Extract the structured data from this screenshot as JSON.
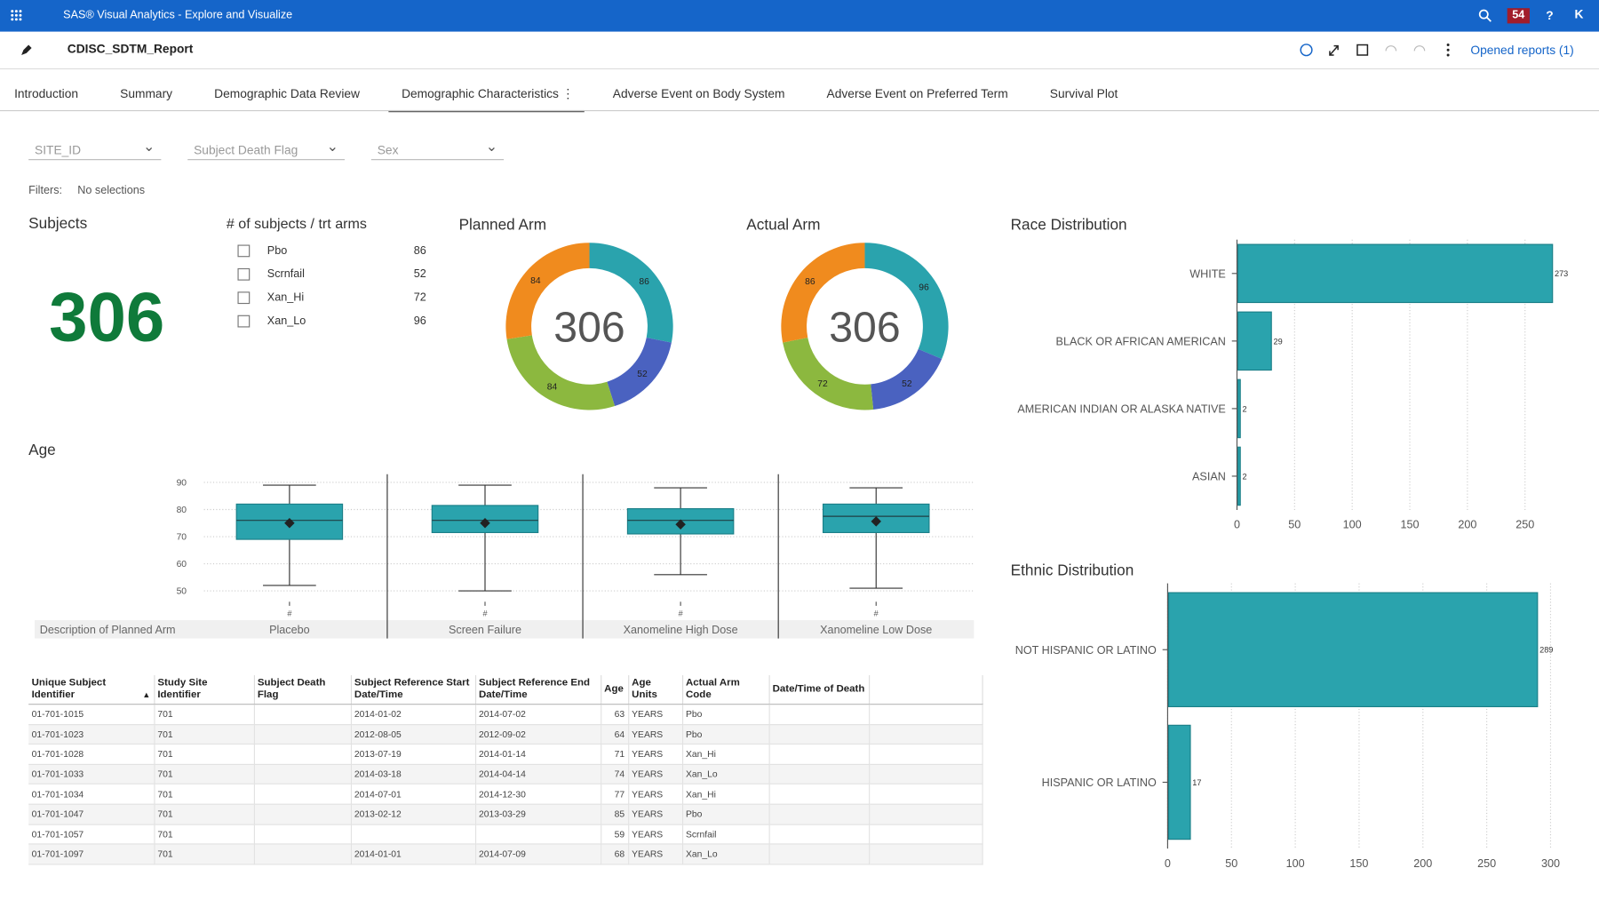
{
  "header": {
    "app_title": "SAS® Visual Analytics - Explore and Visualize",
    "badge": "54",
    "help": "?",
    "user": "K",
    "report_title": "CDISC_SDTM_Report",
    "opened_reports": "Opened reports (1)"
  },
  "tabs": {
    "items": [
      "Introduction",
      "Summary",
      "Demographic Data Review",
      "Demographic Characteristics",
      "Adverse Event on Body System",
      "Adverse Event on Preferred Term",
      "Survival Plot"
    ],
    "active": 3
  },
  "filters": {
    "dropdowns": [
      "SITE_ID",
      "Subject Death Flag",
      "Sex"
    ],
    "label": "Filters:",
    "value": "No selections"
  },
  "subjects": {
    "title": "Subjects",
    "value": 306
  },
  "arm_counts": {
    "title": "# of subjects / trt arms",
    "items": [
      {
        "name": "Pbo",
        "value": 86
      },
      {
        "name": "Scrnfail",
        "value": 52
      },
      {
        "name": "Xan_Hi",
        "value": 72
      },
      {
        "name": "Xan_Lo",
        "value": 96
      }
    ]
  },
  "chart_data": [
    {
      "type": "donut",
      "title": "Planned Arm",
      "center_label": 306,
      "values": [
        86,
        52,
        84,
        84
      ],
      "colors": [
        "#2aa3ad",
        "#4a62c0",
        "#8cb83f",
        "#f08b1e"
      ]
    },
    {
      "type": "donut",
      "title": "Actual Arm",
      "center_label": 306,
      "values": [
        96,
        52,
        72,
        86
      ],
      "colors": [
        "#2aa3ad",
        "#4a62c0",
        "#8cb83f",
        "#f08b1e"
      ]
    },
    {
      "type": "boxplot",
      "title": "Age",
      "x_label": "Description of Planned Arm",
      "tick_symbol": "#",
      "categories": [
        "Placebo",
        "Screen Failure",
        "Xanomeline High Dose",
        "Xanomeline Low Dose"
      ],
      "ylim": [
        46,
        93
      ],
      "yticks": [
        50,
        60,
        70,
        80,
        90
      ],
      "color": "#2aa3ad",
      "grid": true,
      "boxes": [
        {
          "min": 52,
          "q1": 69,
          "median": 76,
          "q3": 82,
          "max": 89,
          "mean": 75
        },
        {
          "min": 50,
          "q1": 71.5,
          "median": 76,
          "q3": 81.5,
          "max": 89,
          "mean": 75
        },
        {
          "min": 56,
          "q1": 71,
          "median": 76,
          "q3": 80.3,
          "max": 88,
          "mean": 74.5
        },
        {
          "min": 51,
          "q1": 71.5,
          "median": 77.5,
          "q3": 82,
          "max": 88,
          "mean": 75.6
        }
      ]
    },
    {
      "type": "hbar",
      "title": "Race Distribution",
      "categories": [
        "WHITE",
        "BLACK OR AFRICAN AMERICAN",
        "AMERICAN INDIAN OR ALASKA NATIVE",
        "ASIAN"
      ],
      "values": [
        273,
        29,
        2,
        2
      ],
      "xlim": [
        0,
        285
      ],
      "xticks": [
        0,
        50,
        100,
        150,
        200,
        250
      ],
      "color": "#2aa3ad",
      "grid": true
    },
    {
      "type": "hbar",
      "title": "Ethnic Distribution",
      "categories": [
        "NOT HISPANIC OR LATINO",
        "HISPANIC OR LATINO"
      ],
      "values": [
        289,
        17
      ],
      "xlim": [
        0,
        302
      ],
      "xticks": [
        0,
        50,
        100,
        150,
        200,
        250,
        300
      ],
      "color": "#2aa3ad",
      "grid": true
    }
  ],
  "table": {
    "columns": [
      "Unique Subject Identifier",
      "Study Site Identifier",
      "Subject Death Flag",
      "Subject Reference Start Date/Time",
      "Subject Reference End Date/Time",
      "Age",
      "Age Units",
      "Actual Arm Code",
      "Date/Time of Death"
    ],
    "rows": [
      [
        "01-701-1015",
        701,
        null,
        "2014-01-02",
        "2014-07-02",
        63,
        "YEARS",
        "Pbo",
        null
      ],
      [
        "01-701-1023",
        701,
        null,
        "2012-08-05",
        "2012-09-02",
        64,
        "YEARS",
        "Pbo",
        null
      ],
      [
        "01-701-1028",
        701,
        null,
        "2013-07-19",
        "2014-01-14",
        71,
        "YEARS",
        "Xan_Hi",
        null
      ],
      [
        "01-701-1033",
        701,
        null,
        "2014-03-18",
        "2014-04-14",
        74,
        "YEARS",
        "Xan_Lo",
        null
      ],
      [
        "01-701-1034",
        701,
        null,
        "2014-07-01",
        "2014-12-30",
        77,
        "YEARS",
        "Xan_Hi",
        null
      ],
      [
        "01-701-1047",
        701,
        null,
        "2013-02-12",
        "2013-03-29",
        85,
        "YEARS",
        "Pbo",
        null
      ],
      [
        "01-701-1057",
        701,
        null,
        null,
        null,
        59,
        "YEARS",
        "Scrnfail",
        null
      ],
      [
        "01-701-1097",
        701,
        null,
        "2014-01-01",
        "2014-07-09",
        68,
        "YEARS",
        "Xan_Lo",
        null
      ]
    ]
  }
}
